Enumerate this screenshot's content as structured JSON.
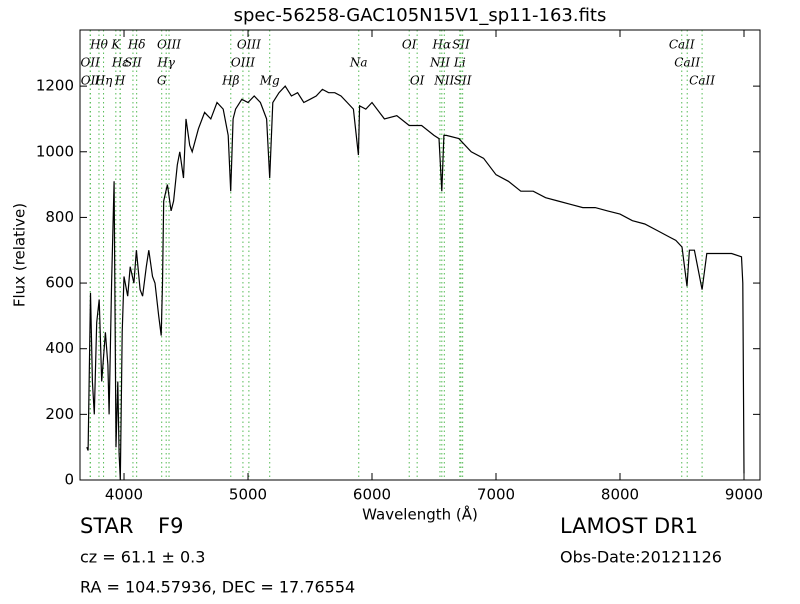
{
  "chart_data": {
    "type": "line",
    "title": "spec-56258-GAC105N15V1_sp11-163.fits",
    "x_label": "Wavelength (Å)",
    "y_label": "Flux (relative)",
    "xlim": [
      3645,
      9129
    ],
    "ylim": [
      0,
      1371
    ],
    "xticks": [
      4000,
      5000,
      6000,
      7000,
      8000,
      9000
    ],
    "yticks": [
      0,
      200,
      400,
      600,
      800,
      1000,
      1200
    ],
    "color": "#000000",
    "line_color": "#55bb55",
    "x": [
      3700,
      3710,
      3730,
      3745,
      3760,
      3780,
      3800,
      3820,
      3850,
      3870,
      3880,
      3900,
      3920,
      3935,
      3950,
      3960,
      3970,
      3985,
      4000,
      4030,
      4050,
      4080,
      4100,
      4130,
      4150,
      4180,
      4200,
      4230,
      4250,
      4280,
      4300,
      4310,
      4320,
      4350,
      4380,
      4400,
      4430,
      4450,
      4480,
      4500,
      4530,
      4550,
      4600,
      4650,
      4700,
      4750,
      4800,
      4840,
      4860,
      4880,
      4900,
      4950,
      5000,
      5050,
      5100,
      5150,
      5175,
      5200,
      5250,
      5300,
      5350,
      5400,
      5450,
      5500,
      5550,
      5600,
      5650,
      5700,
      5750,
      5800,
      5850,
      5890,
      5900,
      5950,
      6000,
      6100,
      6200,
      6300,
      6400,
      6500,
      6540,
      6563,
      6580,
      6600,
      6700,
      6800,
      6900,
      7000,
      7100,
      7200,
      7300,
      7400,
      7500,
      7600,
      7700,
      7800,
      7900,
      8000,
      8100,
      8200,
      8300,
      8400,
      8450,
      8500,
      8540,
      8560,
      8600,
      8662,
      8700,
      8800,
      8900,
      8980,
      8990,
      9000
    ],
    "values": [
      100,
      90,
      570,
      300,
      200,
      480,
      550,
      300,
      450,
      350,
      200,
      600,
      910,
      100,
      300,
      80,
      0,
      450,
      620,
      560,
      650,
      600,
      700,
      580,
      560,
      650,
      700,
      620,
      600,
      500,
      440,
      600,
      850,
      900,
      820,
      850,
      960,
      1000,
      920,
      1100,
      1020,
      1000,
      1070,
      1120,
      1100,
      1150,
      1130,
      1050,
      880,
      1100,
      1130,
      1160,
      1150,
      1170,
      1150,
      1100,
      920,
      1150,
      1180,
      1200,
      1170,
      1180,
      1150,
      1160,
      1170,
      1190,
      1180,
      1180,
      1170,
      1150,
      1130,
      990,
      1140,
      1130,
      1150,
      1100,
      1110,
      1080,
      1080,
      1050,
      1040,
      880,
      1050,
      1050,
      1040,
      1000,
      980,
      930,
      910,
      880,
      880,
      860,
      850,
      840,
      830,
      830,
      820,
      810,
      790,
      780,
      760,
      740,
      730,
      710,
      590,
      700,
      700,
      580,
      690,
      690,
      690,
      680,
      600,
      20
    ],
    "line_rows": [
      [
        {
          "label": "Hθ",
          "wavelength": 3798
        },
        {
          "label": "K",
          "wavelength": 3934
        },
        {
          "label": "Hδ",
          "wavelength": 4102
        },
        {
          "label": "OIII",
          "wavelength": 4363
        },
        {
          "label": "OIII",
          "wavelength": 5007
        },
        {
          "label": "OI",
          "wavelength": 6300
        },
        {
          "label": "Hα",
          "wavelength": 6563
        },
        {
          "label": "SII",
          "wavelength": 6717
        },
        {
          "label": "CaII",
          "wavelength": 8498
        }
      ],
      [
        {
          "label": "OII",
          "wavelength": 3727
        },
        {
          "label": "Hε",
          "wavelength": 3970
        },
        {
          "label": "SII",
          "wavelength": 4072
        },
        {
          "label": "Hγ",
          "wavelength": 4340
        },
        {
          "label": "OIII",
          "wavelength": 4959
        },
        {
          "label": "Na",
          "wavelength": 5893
        },
        {
          "label": "NII",
          "wavelength": 6548
        },
        {
          "label": "Li",
          "wavelength": 6708
        },
        {
          "label": "CaII",
          "wavelength": 8542
        }
      ],
      [
        {
          "label": "OII",
          "wavelength": 3729
        },
        {
          "label": "Hη",
          "wavelength": 3835
        },
        {
          "label": "H",
          "wavelength": 3968
        },
        {
          "label": "G",
          "wavelength": 4304
        },
        {
          "label": "Hβ",
          "wavelength": 4861
        },
        {
          "label": "Mg",
          "wavelength": 5175
        },
        {
          "label": "OI",
          "wavelength": 6364
        },
        {
          "label": "NII",
          "wavelength": 6583
        },
        {
          "label": "SII",
          "wavelength": 6731
        },
        {
          "label": "CaII",
          "wavelength": 8662
        }
      ]
    ],
    "object_class": "STAR",
    "subclass": "F9",
    "survey": "LAMOST DR1",
    "redshift_text": "cz = 61.1 ± 0.3",
    "obs_date": "Obs-Date:20121126",
    "coordinates": "RA = 104.57936, DEC = 17.76554"
  }
}
